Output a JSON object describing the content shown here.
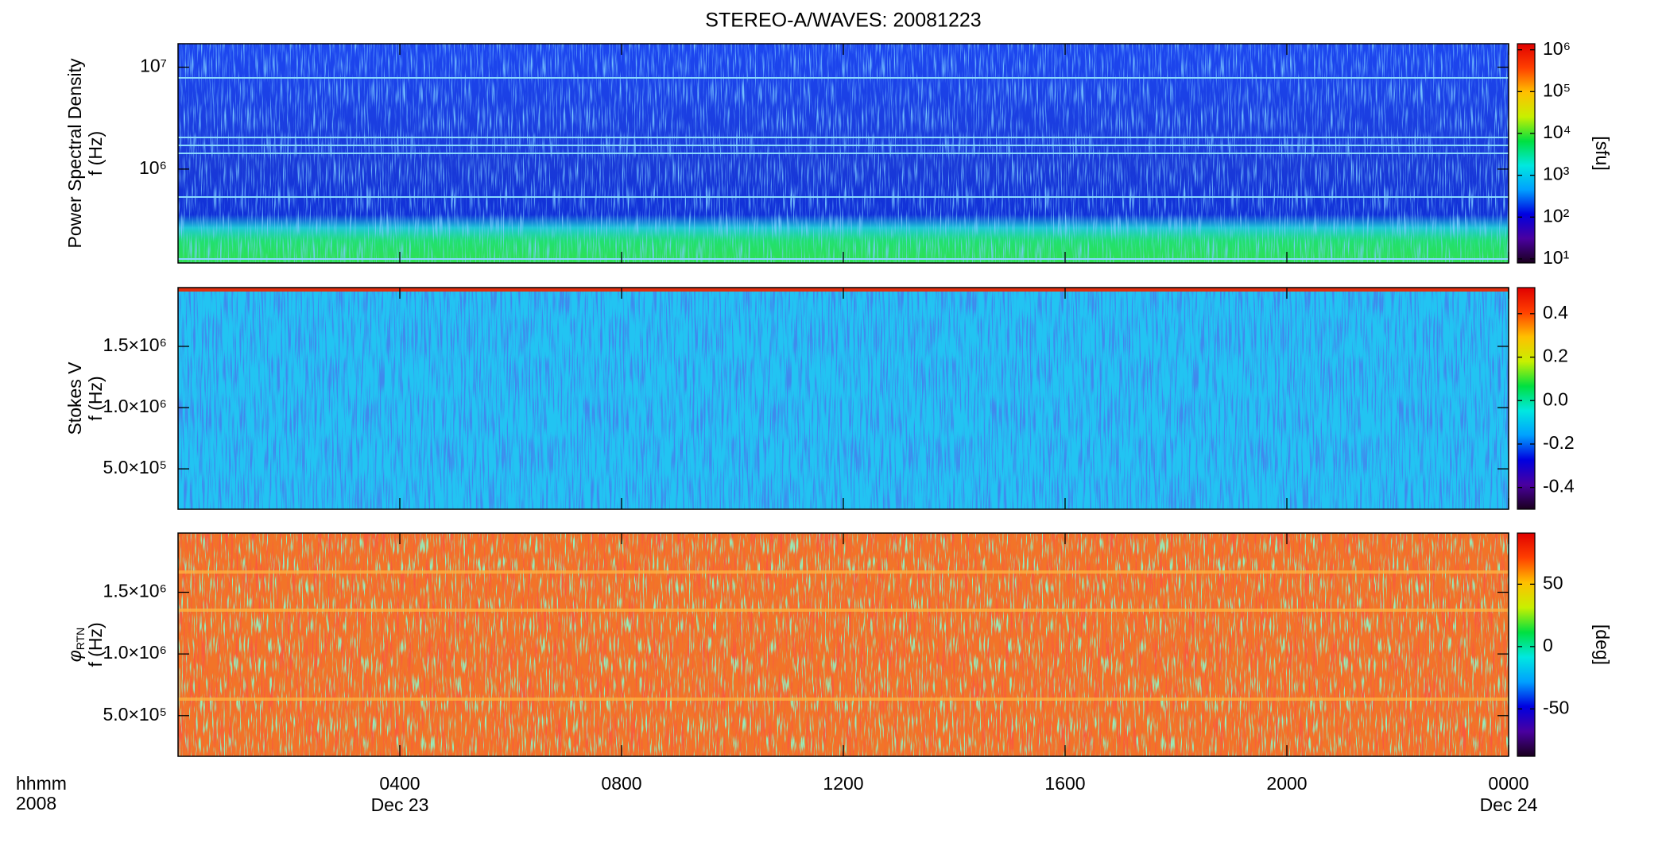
{
  "chart_data": [
    {
      "type": "spectrogram",
      "title": "STEREO-A/WAVES: 20081223",
      "ylabel": [
        "Power Spectral Density",
        "f (Hz)"
      ],
      "ylog": true,
      "ylim": [
        120000,
        17000000
      ],
      "yticks": [
        {
          "value": 1000000,
          "label": "10⁶"
        },
        {
          "value": 10000000,
          "label": "10⁷"
        }
      ],
      "clog": true,
      "clim": [
        8,
        1400000
      ],
      "cticks": [
        {
          "value": 10,
          "label": "10¹"
        },
        {
          "value": 100,
          "label": "10²"
        },
        {
          "value": 1000,
          "label": "10³"
        },
        {
          "value": 10000,
          "label": "10⁴"
        },
        {
          "value": 100000,
          "label": "10⁵"
        },
        {
          "value": 1000000,
          "label": "10⁶"
        }
      ],
      "clabel": "[sfu]",
      "colormap": [
        "#1a001e",
        "#4a00a0",
        "#0000e0",
        "#00a0ff",
        "#00e8e0",
        "#00e040",
        "#c8f000",
        "#ffc000",
        "#ff4000",
        "#e00000"
      ]
    },
    {
      "type": "spectrogram",
      "ylabel": [
        "Stokes V",
        "f (Hz)"
      ],
      "ylog": false,
      "ylim": [
        170000,
        1980000
      ],
      "yticks": [
        {
          "value": 500000,
          "label": "5.0×10⁵"
        },
        {
          "value": 1000000,
          "label": "1.0×10⁶"
        },
        {
          "value": 1500000,
          "label": "1.5×10⁶"
        }
      ],
      "clog": false,
      "clim": [
        -0.5,
        0.52
      ],
      "cticks": [
        {
          "value": -0.4,
          "label": "-0.4"
        },
        {
          "value": -0.2,
          "label": "-0.2"
        },
        {
          "value": 0,
          "label": "0.0"
        },
        0.2,
        0.4
      ],
      "colormap": [
        "#1a001e",
        "#4a00a0",
        "#0000e0",
        "#00a0ff",
        "#00e8e0",
        "#00e040",
        "#c8f000",
        "#ffc000",
        "#ff4000",
        "#e00000"
      ]
    },
    {
      "type": "spectrogram",
      "ylabel_symbol": "φ",
      "ylabel_subscript": "RTN",
      "ylabel": [
        "f (Hz)"
      ],
      "ylog": false,
      "ylim": [
        170000,
        1980000
      ],
      "yticks": [
        {
          "value": 500000,
          "label": "5.0×10⁵"
        },
        {
          "value": 1000000,
          "label": "1.0×10⁶"
        },
        {
          "value": 1500000,
          "label": "1.5×10⁶"
        }
      ],
      "clog": false,
      "clim": [
        -88,
        91
      ],
      "cticks": [
        -50,
        0,
        50
      ],
      "clabel": "[deg]",
      "colormap": [
        "#1a001e",
        "#4a00a0",
        "#0000e0",
        "#00a0ff",
        "#00e8e0",
        "#00e040",
        "#c8f000",
        "#ffc000",
        "#ff4000",
        "#e00000"
      ],
      "x_unit_label": "hhmm",
      "year_label": "2008",
      "xlim": [
        0,
        24
      ],
      "xticks": [
        {
          "value": 4,
          "label": "0400"
        },
        {
          "value": 8,
          "label": "0800"
        },
        {
          "value": 12,
          "label": "1200"
        },
        {
          "value": 16,
          "label": "1600"
        },
        {
          "value": 20,
          "label": "2000"
        },
        {
          "value": 24,
          "label": "0000"
        }
      ],
      "xtick_sublabels": [
        {
          "value": 4,
          "label": "Dec 23"
        },
        {
          "value": 24,
          "label": "Dec 24"
        }
      ]
    }
  ]
}
